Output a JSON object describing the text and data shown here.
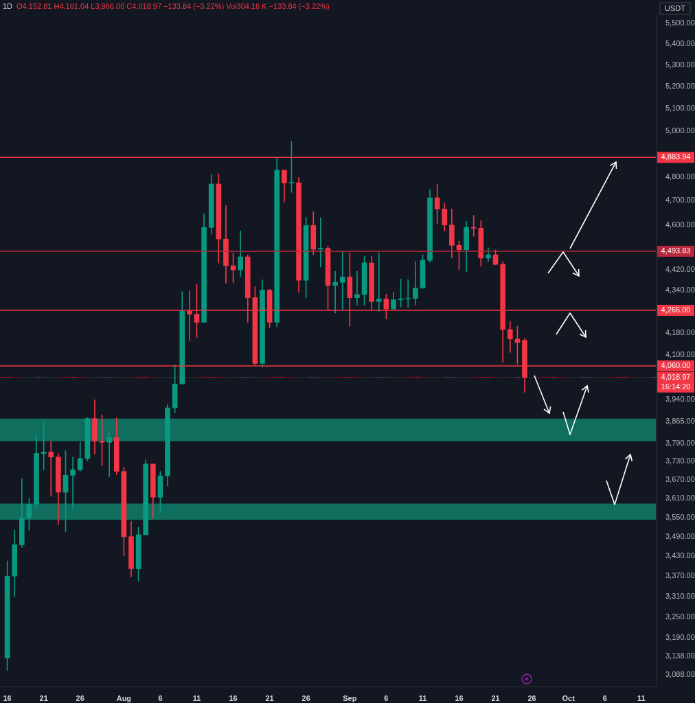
{
  "chart_data": {
    "type": "candlestick",
    "title": "1D",
    "subtitle": "O4,152.81 H4,161.04 L3,966.00 C4,018.97 −133.84 (−3.22%) Vol304.16 K −133.84 (−3.22%)",
    "ylabel": "USDT",
    "log": true,
    "x": [
      "--07-16",
      "--07-17",
      "--07-18",
      "--07-19",
      "--07-20",
      "--07-21",
      "--07-22",
      "--07-23",
      "--07-24",
      "--07-25",
      "--07-26",
      "--07-27",
      "--07-28",
      "--07-29",
      "--07-30",
      "--07-31",
      "--08-01",
      "--08-02",
      "--08-03",
      "--08-04",
      "--08-05",
      "--08-06",
      "--08-07",
      "--08-08",
      "--08-09",
      "--08-10",
      "--08-11",
      "--08-12",
      "--08-13",
      "--08-14",
      "--08-15",
      "--08-16",
      "--08-17",
      "--08-18",
      "--08-19",
      "--08-20",
      "--08-21",
      "--08-22",
      "--08-23",
      "--08-24",
      "--08-25",
      "--08-26",
      "--08-27",
      "--08-28",
      "--08-29",
      "--08-30",
      "--08-31",
      "--09-01",
      "--09-02",
      "--09-03",
      "--09-04",
      "--09-05",
      "--09-06",
      "--09-07",
      "--09-08",
      "--09-09",
      "--09-10",
      "--09-11",
      "--09-12",
      "--09-13",
      "--09-14",
      "--09-15",
      "--09-16",
      "--09-17",
      "--09-18",
      "--09-19",
      "--09-20",
      "--09-21",
      "--09-22",
      "--09-23",
      "--09-24",
      "--09-25"
    ],
    "ohlc": [
      [
        3134,
        3416,
        3100,
        3370
      ],
      [
        3370,
        3510,
        3310,
        3465
      ],
      [
        3465,
        3674,
        3457,
        3548
      ],
      [
        3548,
        3610,
        3510,
        3592
      ],
      [
        3592,
        3817,
        3580,
        3757
      ],
      [
        3757,
        3863,
        3703,
        3762
      ],
      [
        3762,
        3798,
        3617,
        3745
      ],
      [
        3745,
        3757,
        3528,
        3630
      ],
      [
        3630,
        3767,
        3506,
        3685
      ],
      [
        3685,
        3745,
        3576,
        3703
      ],
      [
        3703,
        3794,
        3698,
        3740
      ],
      [
        3740,
        3878,
        3732,
        3875
      ],
      [
        3875,
        3940,
        3755,
        3798
      ],
      [
        3798,
        3888,
        3717,
        3794
      ],
      [
        3794,
        3827,
        3681,
        3810
      ],
      [
        3810,
        3878,
        3687,
        3698
      ],
      [
        3698,
        3712,
        3432,
        3490
      ],
      [
        3490,
        3537,
        3368,
        3392
      ],
      [
        3392,
        3520,
        3355,
        3496
      ],
      [
        3496,
        3736,
        3496,
        3722
      ],
      [
        3722,
        3722,
        3548,
        3614
      ],
      [
        3614,
        3698,
        3565,
        3683
      ],
      [
        3683,
        3925,
        3650,
        3912
      ],
      [
        3912,
        4064,
        3895,
        3995
      ],
      [
        3995,
        4336,
        3995,
        4262
      ],
      [
        4262,
        4340,
        4152,
        4250
      ],
      [
        4250,
        4365,
        4163,
        4220
      ],
      [
        4220,
        4645,
        4220,
        4590
      ],
      [
        4590,
        4810,
        4563,
        4770
      ],
      [
        4770,
        4813,
        4448,
        4543
      ],
      [
        4543,
        4680,
        4368,
        4437
      ],
      [
        4437,
        4488,
        4370,
        4420
      ],
      [
        4420,
        4576,
        4395,
        4472
      ],
      [
        4472,
        4480,
        4220,
        4313
      ],
      [
        4313,
        4355,
        4064,
        4069
      ],
      [
        4069,
        4382,
        4055,
        4342
      ],
      [
        4342,
        4345,
        4200,
        4220
      ],
      [
        4220,
        4885,
        4203,
        4829
      ],
      [
        4829,
        4829,
        4694,
        4774
      ],
      [
        4774,
        4954,
        4735,
        4776
      ],
      [
        4776,
        4798,
        4333,
        4380
      ],
      [
        4380,
        4630,
        4313,
        4598
      ],
      [
        4598,
        4655,
        4480,
        4502
      ],
      [
        4502,
        4630,
        4432,
        4506
      ],
      [
        4506,
        4515,
        4265,
        4360
      ],
      [
        4360,
        4415,
        4255,
        4372
      ],
      [
        4372,
        4494,
        4268,
        4393
      ],
      [
        4393,
        4488,
        4205,
        4313
      ],
      [
        4313,
        4415,
        4285,
        4325
      ],
      [
        4325,
        4475,
        4285,
        4448
      ],
      [
        4448,
        4475,
        4268,
        4298
      ],
      [
        4298,
        4488,
        4260,
        4308
      ],
      [
        4308,
        4327,
        4232,
        4270
      ],
      [
        4270,
        4335,
        4270,
        4305
      ],
      [
        4305,
        4385,
        4278,
        4308
      ],
      [
        4308,
        4382,
        4276,
        4310
      ],
      [
        4310,
        4453,
        4285,
        4350
      ],
      [
        4350,
        4480,
        4348,
        4458
      ],
      [
        4458,
        4745,
        4450,
        4712
      ],
      [
        4712,
        4768,
        4606,
        4665
      ],
      [
        4665,
        4690,
        4576,
        4600
      ],
      [
        4600,
        4665,
        4467,
        4518
      ],
      [
        4518,
        4535,
        4422,
        4500
      ],
      [
        4500,
        4615,
        4412,
        4590
      ],
      [
        4590,
        4640,
        4554,
        4587
      ],
      [
        4587,
        4617,
        4435,
        4467
      ],
      [
        4467,
        4508,
        4453,
        4480
      ],
      [
        4480,
        4500,
        4440,
        4442
      ],
      [
        4442,
        4453,
        4072,
        4193
      ],
      [
        4193,
        4223,
        4109,
        4158
      ],
      [
        4158,
        4205,
        4066,
        4145
      ],
      [
        4152.81,
        4161.04,
        3966.0,
        4018.97
      ]
    ],
    "colors": [
      "#089981",
      "#089981",
      "#089981",
      "#089981",
      "#089981",
      "#089981",
      "#f23645",
      "#f23645",
      "#089981",
      "#089981",
      "#089981",
      "#089981",
      "#f23645",
      "#f23645",
      "#089981",
      "#f23645",
      "#f23645",
      "#f23645",
      "#089981",
      "#089981",
      "#f23645",
      "#089981",
      "#089981",
      "#089981",
      "#089981",
      "#f23645",
      "#f23645",
      "#089981",
      "#089981",
      "#f23645",
      "#f23645",
      "#f23645",
      "#089981",
      "#f23645",
      "#f23645",
      "#089981",
      "#f23645",
      "#089981",
      "#f23645",
      "#089981",
      "#f23645",
      "#089981",
      "#f23645",
      "#089981",
      "#f23645",
      "#089981",
      "#089981",
      "#f23645",
      "#089981",
      "#089981",
      "#f23645",
      "#089981",
      "#f23645",
      "#089981",
      "#089981",
      "#089981",
      "#089981",
      "#089981",
      "#089981",
      "#f23645",
      "#f23645",
      "#f23645",
      "#f23645",
      "#089981",
      "#f23645",
      "#f23645",
      "#089981",
      "#f23645",
      "#f23645",
      "#f23645",
      "#f23645",
      "#f23645"
    ],
    "xlim": [
      "--07-15",
      "--10-13"
    ],
    "xticks": [
      {
        "value": "--07-16",
        "label": "16"
      },
      {
        "value": "--07-21",
        "label": "21"
      },
      {
        "value": "--07-26",
        "label": "26"
      },
      {
        "value": "--08-01",
        "label": "Aug"
      },
      {
        "value": "--08-06",
        "label": "6"
      },
      {
        "value": "--08-11",
        "label": "11"
      },
      {
        "value": "--08-16",
        "label": "16"
      },
      {
        "value": "--08-21",
        "label": "21"
      },
      {
        "value": "--08-26",
        "label": "26"
      },
      {
        "value": "--09-01",
        "label": "Sep"
      },
      {
        "value": "--09-06",
        "label": "6"
      },
      {
        "value": "--09-11",
        "label": "11"
      },
      {
        "value": "--09-16",
        "label": "16"
      },
      {
        "value": "--09-21",
        "label": "21"
      },
      {
        "value": "--09-26",
        "label": "26"
      },
      {
        "value": "--10-01",
        "label": "Oct"
      },
      {
        "value": "--10-06",
        "label": "6"
      },
      {
        "value": "--10-11",
        "label": "11"
      }
    ],
    "ylim": [
      3056,
      5540
    ],
    "yticks": [
      {
        "value": 5500,
        "label": "5,500.00"
      },
      {
        "value": 5400,
        "label": "5,400.00"
      },
      {
        "value": 5300,
        "label": "5,300.00"
      },
      {
        "value": 5200,
        "label": "5,200.00"
      },
      {
        "value": 5100,
        "label": "5,100.00"
      },
      {
        "value": 5000,
        "label": "5,000.00"
      },
      {
        "value": 4800,
        "label": "4,800.00"
      },
      {
        "value": 4700,
        "label": "4,700.00"
      },
      {
        "value": 4600,
        "label": "4,600.00"
      },
      {
        "value": 4420,
        "label": "4,420.00"
      },
      {
        "value": 4340,
        "label": "4,340.00"
      },
      {
        "value": 4180,
        "label": "4,180.00"
      },
      {
        "value": 4100,
        "label": "4,100.00"
      },
      {
        "value": 3940,
        "label": "3,940.00"
      },
      {
        "value": 3865,
        "label": "3,865.00"
      },
      {
        "value": 3790,
        "label": "3,790.00"
      },
      {
        "value": 3730,
        "label": "3,730.00"
      },
      {
        "value": 3670,
        "label": "3,670.00"
      },
      {
        "value": 3610,
        "label": "3,610.00"
      },
      {
        "value": 3550,
        "label": "3,550.00"
      },
      {
        "value": 3490,
        "label": "3,490.00"
      },
      {
        "value": 3430,
        "label": "3,430.00"
      },
      {
        "value": 3370,
        "label": "3,370.00"
      },
      {
        "value": 3310,
        "label": "3,310.00"
      },
      {
        "value": 3250,
        "label": "3,250.00"
      },
      {
        "value": 3190,
        "label": "3,190.00"
      },
      {
        "value": 3138,
        "label": "3,138.00"
      },
      {
        "value": 3088,
        "label": "3,088.00"
      }
    ],
    "ref_lines": [
      {
        "axis": "y",
        "value": 4883.94,
        "label": "4,883.94",
        "color": "#f23645"
      },
      {
        "axis": "y",
        "value": 4493.83,
        "label": "4,493.83",
        "color": "#b8283a"
      },
      {
        "axis": "y",
        "value": 4265,
        "label": "4,265.00",
        "color": "#f23645"
      },
      {
        "axis": "y",
        "value": 4060,
        "label": "4,060.00",
        "color": "#f23645"
      },
      {
        "axis": "y",
        "value": 4018.97,
        "label": "4,018.97 16:14:20",
        "color": "#f23645",
        "line_style": "dotted"
      }
    ],
    "bands": [
      {
        "axis": "y",
        "from": 3798,
        "to": 3875,
        "color": "#0f6e5e"
      },
      {
        "axis": "y",
        "from": 3542,
        "to": 3594,
        "color": "#0f6e5e"
      }
    ]
  }
}
